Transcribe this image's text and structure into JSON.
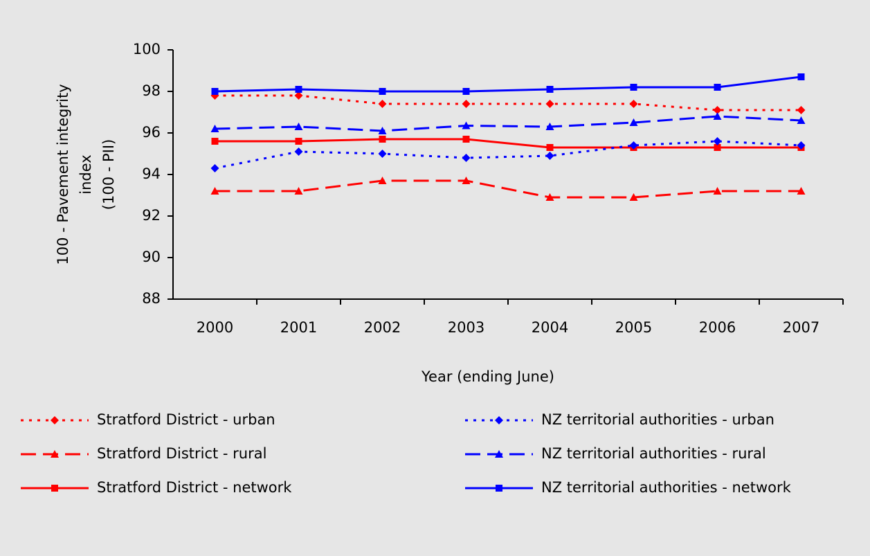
{
  "chart_data": {
    "type": "line",
    "ylabel": [
      "100 - Pavement integrity",
      "index",
      "(100 - PII)"
    ],
    "xlabel": "Year (ending June)",
    "categories": [
      "2000",
      "2001",
      "2002",
      "2003",
      "2004",
      "2005",
      "2006",
      "2007"
    ],
    "ylim": [
      88,
      100
    ],
    "yticks": [
      88,
      90,
      92,
      94,
      96,
      98,
      100
    ],
    "series": [
      {
        "name": "Stratford District - urban",
        "color": "#ff0000",
        "dash": "dotted",
        "marker": "diamond",
        "values": [
          97.8,
          97.8,
          97.4,
          97.4,
          97.4,
          97.4,
          97.1,
          97.1
        ]
      },
      {
        "name": "Stratford District - rural",
        "color": "#ff0000",
        "dash": "dashed",
        "marker": "triangle",
        "values": [
          93.2,
          93.2,
          93.7,
          93.7,
          92.9,
          92.9,
          93.2,
          93.2
        ]
      },
      {
        "name": "Stratford District - network",
        "color": "#ff0000",
        "dash": "solid",
        "marker": "square",
        "values": [
          95.6,
          95.6,
          95.7,
          95.7,
          95.3,
          95.3,
          95.3,
          95.3
        ]
      },
      {
        "name": "NZ territorial authorities - urban",
        "color": "#0000ff",
        "dash": "dotted",
        "marker": "diamond",
        "values": [
          94.3,
          95.1,
          95.0,
          94.8,
          94.9,
          95.4,
          95.6,
          95.4
        ]
      },
      {
        "name": "NZ territorial authorities - rural",
        "color": "#0000ff",
        "dash": "dashed",
        "marker": "triangle",
        "values": [
          96.2,
          96.3,
          96.1,
          96.35,
          96.3,
          96.5,
          96.8,
          96.6
        ]
      },
      {
        "name": "NZ territorial authorities - network",
        "color": "#0000ff",
        "dash": "solid",
        "marker": "square",
        "values": [
          98.0,
          98.1,
          98.0,
          98.0,
          98.1,
          98.2,
          98.2,
          98.7
        ]
      }
    ]
  }
}
